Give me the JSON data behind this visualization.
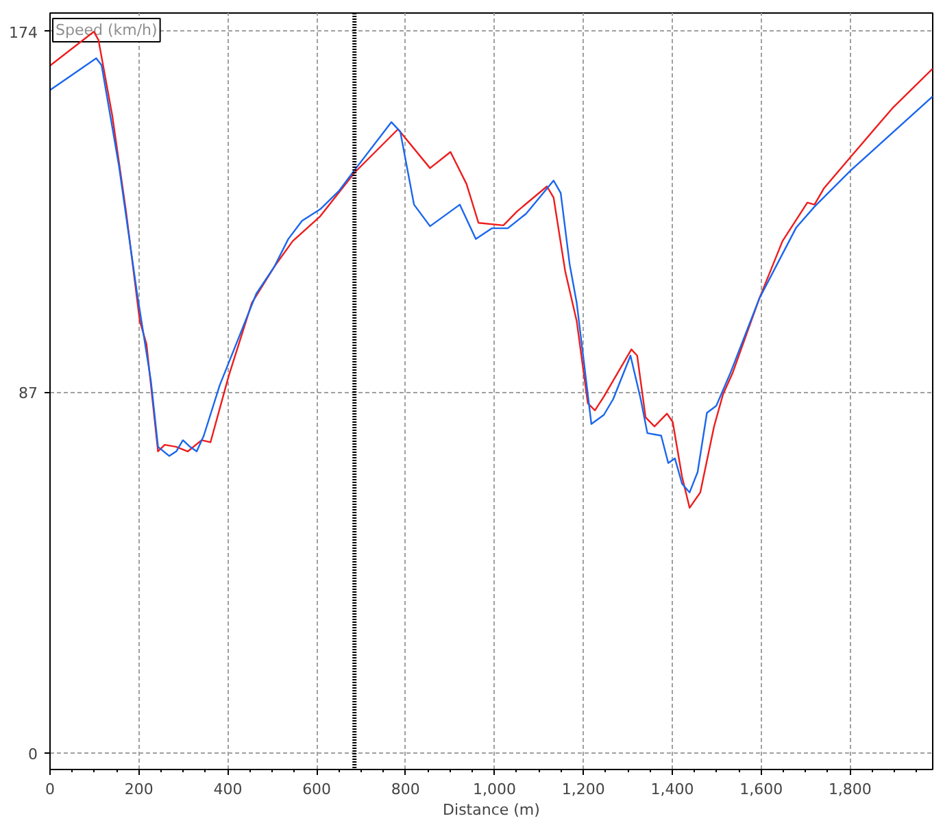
{
  "chart_data": {
    "type": "line",
    "ylabel": "Speed (km/h)",
    "xlabel": "Distance (m)",
    "xlim": [
      0,
      1986
    ],
    "ylim": [
      -4,
      178.4
    ],
    "xticks": [
      0,
      {
        "value": 200,
        "label": "200"
      },
      {
        "value": 400,
        "label": "400"
      },
      {
        "value": 600,
        "label": "600"
      },
      {
        "value": 800,
        "label": "800"
      },
      {
        "value": 1000,
        "label": "1,000"
      },
      {
        "value": 1200,
        "label": "1,200"
      },
      {
        "value": 1400,
        "label": "1,400"
      },
      {
        "value": 1600,
        "label": "1,600"
      },
      {
        "value": 1800,
        "label": "1,800"
      }
    ],
    "yticks": [
      0,
      87,
      174
    ],
    "grid": true,
    "line_style": "solid",
    "ref_lines": [
      {
        "axis": "x",
        "value": 685,
        "label": null,
        "color": "#000000",
        "line_style": "dotted"
      }
    ],
    "series": [
      {
        "color": "#ee1c1c",
        "x": [
          0,
          98.5,
          109,
          140,
          171,
          202,
          217,
          243,
          258,
          284,
          310,
          341,
          361,
          402,
          454,
          505,
          546,
          608,
          685,
          783,
          855,
          901,
          937,
          964,
          1020,
          1051,
          1118,
          1133,
          1159,
          1185,
          1210,
          1226,
          1246,
          1308,
          1321,
          1340,
          1360,
          1388,
          1401,
          1422,
          1439,
          1463,
          1494,
          1514,
          1535,
          1596,
          1648,
          1704,
          1720,
          1741,
          1802,
          1895,
          1986
        ],
        "values": [
          165.7,
          173.9,
          171.9,
          153.7,
          130.6,
          104.1,
          98.6,
          72.7,
          74.3,
          73.8,
          72.7,
          75.4,
          74.9,
          90.9,
          108.5,
          117.3,
          123.4,
          129.4,
          139.9,
          150.4,
          141.0,
          144.9,
          137.2,
          127.8,
          127.2,
          130.6,
          136.6,
          133.9,
          116.2,
          104.1,
          84.3,
          82.6,
          85.9,
          97.3,
          95.8,
          80.9,
          78.7,
          81.8,
          79.8,
          66.6,
          59.1,
          62.8,
          78.7,
          86.4,
          91.4,
          109.6,
          123.4,
          132.7,
          132.2,
          136.1,
          143.8,
          155.4,
          165.0
        ]
      },
      {
        "color": "#1a66ee",
        "x": [
          0,
          104,
          116,
          155,
          196,
          227,
          243,
          268,
          284,
          299,
          315,
          330,
          346,
          382,
          423,
          464,
          505,
          536,
          567,
          608,
          650,
          685,
          768,
          788,
          819,
          855,
          922,
          958,
          994,
          1030,
          1071,
          1133,
          1149,
          1169,
          1185,
          1200,
          1218,
          1246,
          1267,
          1306,
          1329,
          1344,
          1375,
          1391,
          1406,
          1422,
          1439,
          1457,
          1478,
          1499,
          1530,
          1596,
          1679,
          1720,
          1802,
          1986
        ],
        "values": [
          159.8,
          167.5,
          165.8,
          141.6,
          110.7,
          89.7,
          73.8,
          71.6,
          72.7,
          75.4,
          73.8,
          72.7,
          76.5,
          88.7,
          99.7,
          110.7,
          117.3,
          123.9,
          128.3,
          131.1,
          135.5,
          140.5,
          152.1,
          149.8,
          132.2,
          127.0,
          132.2,
          123.9,
          126.5,
          126.5,
          130.0,
          138.0,
          135.0,
          117.9,
          108.5,
          95.3,
          79.3,
          81.5,
          85.3,
          95.8,
          85.3,
          77.1,
          76.5,
          69.9,
          71.0,
          64.9,
          62.8,
          67.7,
          82.0,
          83.7,
          91.4,
          109.6,
          126.7,
          131.7,
          140.5,
          158.3
        ]
      }
    ]
  }
}
